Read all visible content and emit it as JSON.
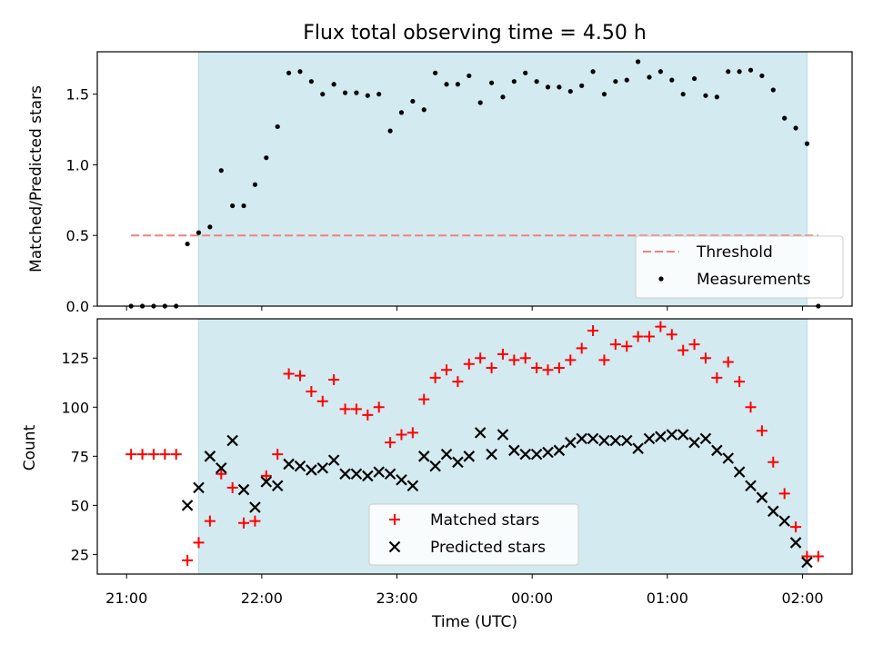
{
  "figure": {
    "title": "Flux total observing time = 4.50 h",
    "xlabel": "Time (UTC)",
    "x_ticks": [
      "21:00",
      "22:00",
      "23:00",
      "00:00",
      "01:00",
      "02:00"
    ]
  },
  "chart_data": [
    {
      "type": "scatter",
      "ylabel": "Matched/Predicted stars",
      "ylim": [
        0,
        1.8
      ],
      "y_ticks": [
        "0.0",
        "0.5",
        "1.0",
        "1.5"
      ],
      "xlim_minutes_after_2100": [
        -13,
        322
      ],
      "observing_window_minutes_after_2100": [
        32,
        302
      ],
      "observing_window_color": "#d3eaf0",
      "legend": {
        "placement": "lower-right",
        "entries": [
          "Threshold",
          "Measurements"
        ]
      },
      "threshold": {
        "name": "Threshold",
        "value": 0.5,
        "x_range": [
          2,
          307
        ],
        "color": "#f08080",
        "style": "dashed"
      },
      "series": [
        {
          "name": "Measurements",
          "color": "#000000",
          "x": [
            2,
            7,
            12,
            17,
            22,
            27,
            32,
            37,
            42,
            47,
            52,
            57,
            62,
            67,
            72,
            77,
            82,
            87,
            92,
            97,
            102,
            107,
            112,
            117,
            122,
            127,
            132,
            137,
            142,
            147,
            152,
            157,
            162,
            167,
            172,
            177,
            182,
            187,
            192,
            197,
            202,
            207,
            212,
            217,
            222,
            227,
            232,
            237,
            242,
            247,
            252,
            257,
            262,
            267,
            272,
            277,
            282,
            287,
            292,
            297,
            302,
            307
          ],
          "y": [
            0.0,
            0.0,
            0.0,
            0.0,
            0.0,
            0.44,
            0.52,
            0.56,
            0.96,
            0.71,
            0.71,
            0.86,
            1.05,
            1.27,
            1.65,
            1.66,
            1.59,
            1.5,
            1.57,
            1.51,
            1.51,
            1.49,
            1.5,
            1.24,
            1.37,
            1.45,
            1.39,
            1.65,
            1.57,
            1.57,
            1.63,
            1.44,
            1.58,
            1.48,
            1.59,
            1.65,
            1.59,
            1.55,
            1.55,
            1.52,
            1.56,
            1.66,
            1.5,
            1.59,
            1.6,
            1.73,
            1.62,
            1.66,
            1.6,
            1.5,
            1.61,
            1.49,
            1.48,
            1.66,
            1.66,
            1.67,
            1.63,
            1.53,
            1.33,
            1.26,
            1.15,
            0.0
          ]
        }
      ]
    },
    {
      "type": "scatter",
      "ylabel": "Count",
      "ylim": [
        15,
        145
      ],
      "y_ticks": [
        "25",
        "50",
        "75",
        "100",
        "125"
      ],
      "xlim_minutes_after_2100": [
        -13,
        322
      ],
      "observing_window_minutes_after_2100": [
        32,
        302
      ],
      "observing_window_color": "#d3eaf0",
      "legend": {
        "placement": "lower-center",
        "entries": [
          "Matched stars",
          "Predicted stars"
        ]
      },
      "series": [
        {
          "name": "Matched stars",
          "marker": "plus",
          "color": "#ff0000",
          "x": [
            2,
            7,
            12,
            17,
            22,
            27,
            32,
            37,
            42,
            47,
            52,
            57,
            62,
            67,
            72,
            77,
            82,
            87,
            92,
            97,
            102,
            107,
            112,
            117,
            122,
            127,
            132,
            137,
            142,
            147,
            152,
            157,
            162,
            167,
            172,
            177,
            182,
            187,
            192,
            197,
            202,
            207,
            212,
            217,
            222,
            227,
            232,
            237,
            242,
            247,
            252,
            257,
            262,
            267,
            272,
            277,
            282,
            287,
            292,
            297,
            302,
            307
          ],
          "y": [
            76,
            76,
            76,
            76,
            76,
            22,
            31,
            42,
            66,
            59,
            41,
            42,
            65,
            76,
            117,
            116,
            108,
            103,
            114,
            99,
            99,
            96,
            100,
            82,
            86,
            87,
            104,
            115,
            119,
            113,
            122,
            125,
            120,
            127,
            124,
            125,
            120,
            119,
            120,
            124,
            130,
            139,
            124,
            132,
            131,
            136,
            136,
            141,
            137,
            129,
            132,
            125,
            115,
            123,
            113,
            100,
            88,
            72,
            56,
            39,
            24,
            24
          ]
        },
        {
          "name": "Predicted stars",
          "marker": "x",
          "color": "#000000",
          "x": [
            27,
            32,
            37,
            42,
            47,
            52,
            57,
            62,
            67,
            72,
            77,
            82,
            87,
            92,
            97,
            102,
            107,
            112,
            117,
            122,
            127,
            132,
            137,
            142,
            147,
            152,
            157,
            162,
            167,
            172,
            177,
            182,
            187,
            192,
            197,
            202,
            207,
            212,
            217,
            222,
            227,
            232,
            237,
            242,
            247,
            252,
            257,
            262,
            267,
            272,
            277,
            282,
            287,
            292,
            297,
            302
          ],
          "y": [
            50,
            59,
            75,
            69,
            83,
            58,
            49,
            62,
            60,
            71,
            70,
            68,
            69,
            73,
            66,
            66,
            65,
            67,
            66,
            63,
            60,
            75,
            70,
            76,
            72,
            75,
            87,
            76,
            86,
            78,
            76,
            76,
            77,
            78,
            82,
            84,
            84,
            83,
            83,
            83,
            79,
            84,
            85,
            86,
            86,
            82,
            84,
            78,
            74,
            67,
            60,
            54,
            47,
            42,
            31,
            21
          ]
        }
      ]
    }
  ]
}
